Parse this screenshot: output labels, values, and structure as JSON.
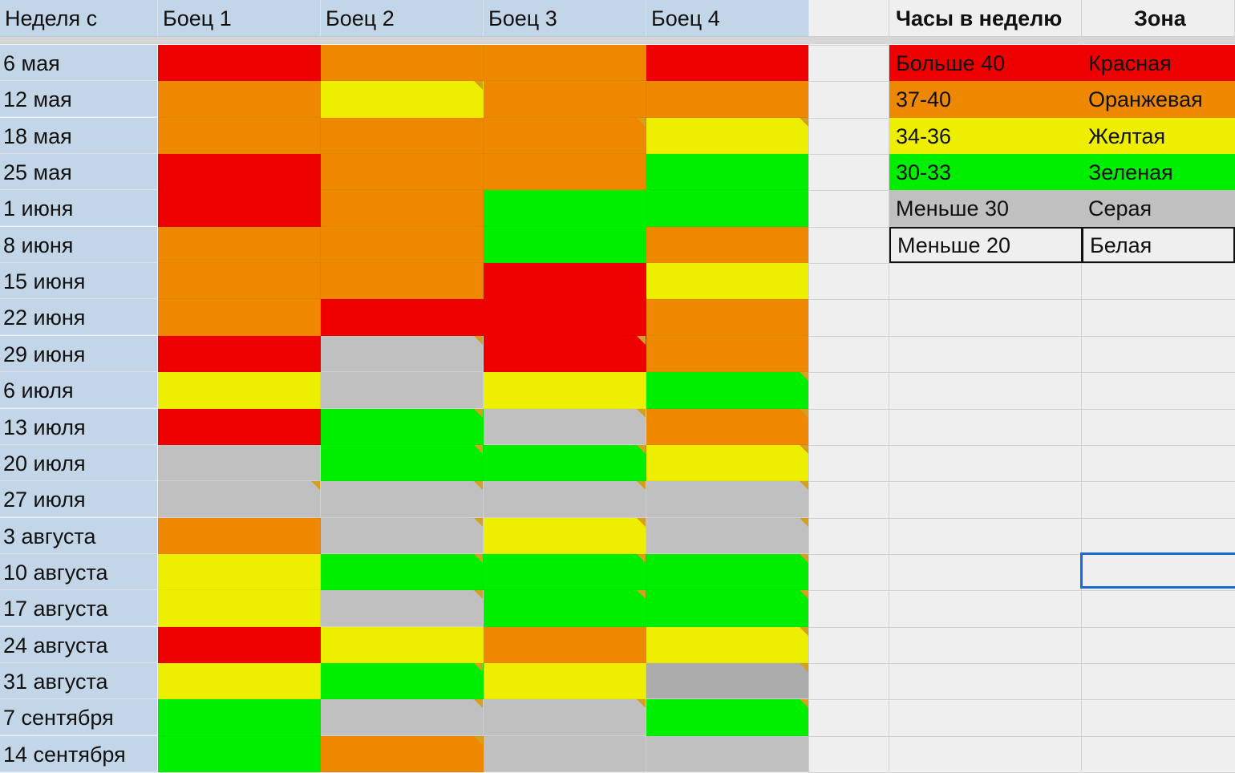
{
  "headers": {
    "week": "Неделя с",
    "fighters": [
      "Боец 1",
      "Боец 2",
      "Боец 3",
      "Боец 4"
    ],
    "hours": "Часы в неделю",
    "zone": "Зона"
  },
  "colors": {
    "red": "#ee0000",
    "orange": "#ee8800",
    "yellow": "#eeee00",
    "green": "#00ee00",
    "gray": "#c0c0c0",
    "dark_gray": "#acacac"
  },
  "rows": [
    {
      "week": "6 мая",
      "zones": [
        "red",
        "orange",
        "orange",
        "red"
      ]
    },
    {
      "week": "12 мая",
      "zones": [
        "orange",
        "yellow",
        "orange",
        "orange"
      ]
    },
    {
      "week": "18 мая",
      "zones": [
        "orange",
        "orange",
        "orange",
        "yellow"
      ]
    },
    {
      "week": "25 мая",
      "zones": [
        "red",
        "orange",
        "orange",
        "green"
      ]
    },
    {
      "week": "1 июня",
      "zones": [
        "red",
        "orange",
        "green",
        "green"
      ]
    },
    {
      "week": "8 июня",
      "zones": [
        "orange",
        "orange",
        "green",
        "orange"
      ]
    },
    {
      "week": "15 июня",
      "zones": [
        "orange",
        "orange",
        "red",
        "yellow"
      ]
    },
    {
      "week": "22 июня",
      "zones": [
        "orange",
        "red",
        "red",
        "orange"
      ]
    },
    {
      "week": "29 июня",
      "zones": [
        "red",
        "gray",
        "red",
        "orange"
      ]
    },
    {
      "week": "6 июля",
      "zones": [
        "yellow",
        "gray",
        "yellow",
        "green"
      ]
    },
    {
      "week": "13 июля",
      "zones": [
        "red",
        "green",
        "gray",
        "orange"
      ]
    },
    {
      "week": "20 июля",
      "zones": [
        "gray",
        "green",
        "green",
        "yellow"
      ]
    },
    {
      "week": "27 июля",
      "zones": [
        "gray",
        "gray",
        "gray",
        "gray"
      ]
    },
    {
      "week": "3 августа",
      "zones": [
        "orange",
        "gray",
        "yellow",
        "gray"
      ]
    },
    {
      "week": "10 августа",
      "zones": [
        "yellow",
        "green",
        "green",
        "green"
      ]
    },
    {
      "week": "17 августа",
      "zones": [
        "yellow",
        "gray",
        "green",
        "green"
      ]
    },
    {
      "week": "24 августа",
      "zones": [
        "red",
        "yellow",
        "orange",
        "yellow"
      ]
    },
    {
      "week": "31 августа",
      "zones": [
        "yellow",
        "green",
        "yellow",
        "dark_gray"
      ]
    },
    {
      "week": "7 сентября",
      "zones": [
        "green",
        "gray",
        "gray",
        "green"
      ]
    },
    {
      "week": "14 сентября",
      "zones": [
        "green",
        "orange",
        "gray",
        "gray"
      ]
    }
  ],
  "legend": [
    {
      "hours": "Больше 40",
      "zone": "Красная",
      "color": "red"
    },
    {
      "hours": "37-40",
      "zone": "Оранжевая",
      "color": "orange"
    },
    {
      "hours": "34-36",
      "zone": "Желтая",
      "color": "yellow"
    },
    {
      "hours": "30-33",
      "zone": "Зеленая",
      "color": "green"
    },
    {
      "hours": "Меньше 30",
      "zone": "Серая",
      "color": "gray"
    },
    {
      "hours": "Меньше 20",
      "zone": "Белая",
      "color": "white"
    }
  ]
}
